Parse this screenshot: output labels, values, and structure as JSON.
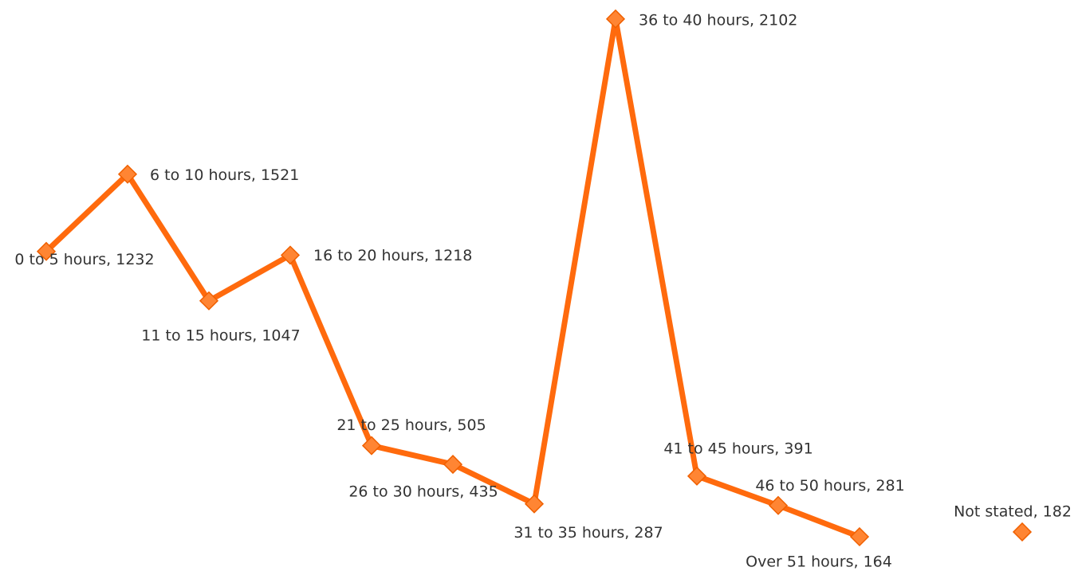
{
  "chart_data": {
    "type": "line",
    "categories": [
      "0 to 5 hours",
      "6 to 10 hours",
      "11 to 15 hours",
      "16 to 20 hours",
      "21 to 25 hours",
      "26 to 30 hours",
      "31 to 35 hours",
      "36 to 40 hours",
      "41 to 45 hours",
      "46 to 50 hours",
      "Over 51 hours",
      null,
      "Not stated"
    ],
    "values": [
      1232,
      1521,
      1047,
      1218,
      505,
      435,
      287,
      2102,
      391,
      281,
      164,
      null,
      182
    ],
    "value_labels": [
      "0 to 5 hours, 1232",
      "6 to 10 hours, 1521",
      "11 to 15 hours, 1047",
      "16 to 20 hours, 1218",
      "21 to 25 hours, 505",
      "26 to 30 hours, 435",
      "31 to 35 hours, 287",
      "36 to 40 hours, 2102",
      "41 to 45 hours, 391",
      "46 to 50 hours, 281",
      "Over 51 hours, 164",
      null,
      "Not stated, 182"
    ],
    "color": "#ff6a0d",
    "ylim": [
      0,
      2173
    ]
  }
}
